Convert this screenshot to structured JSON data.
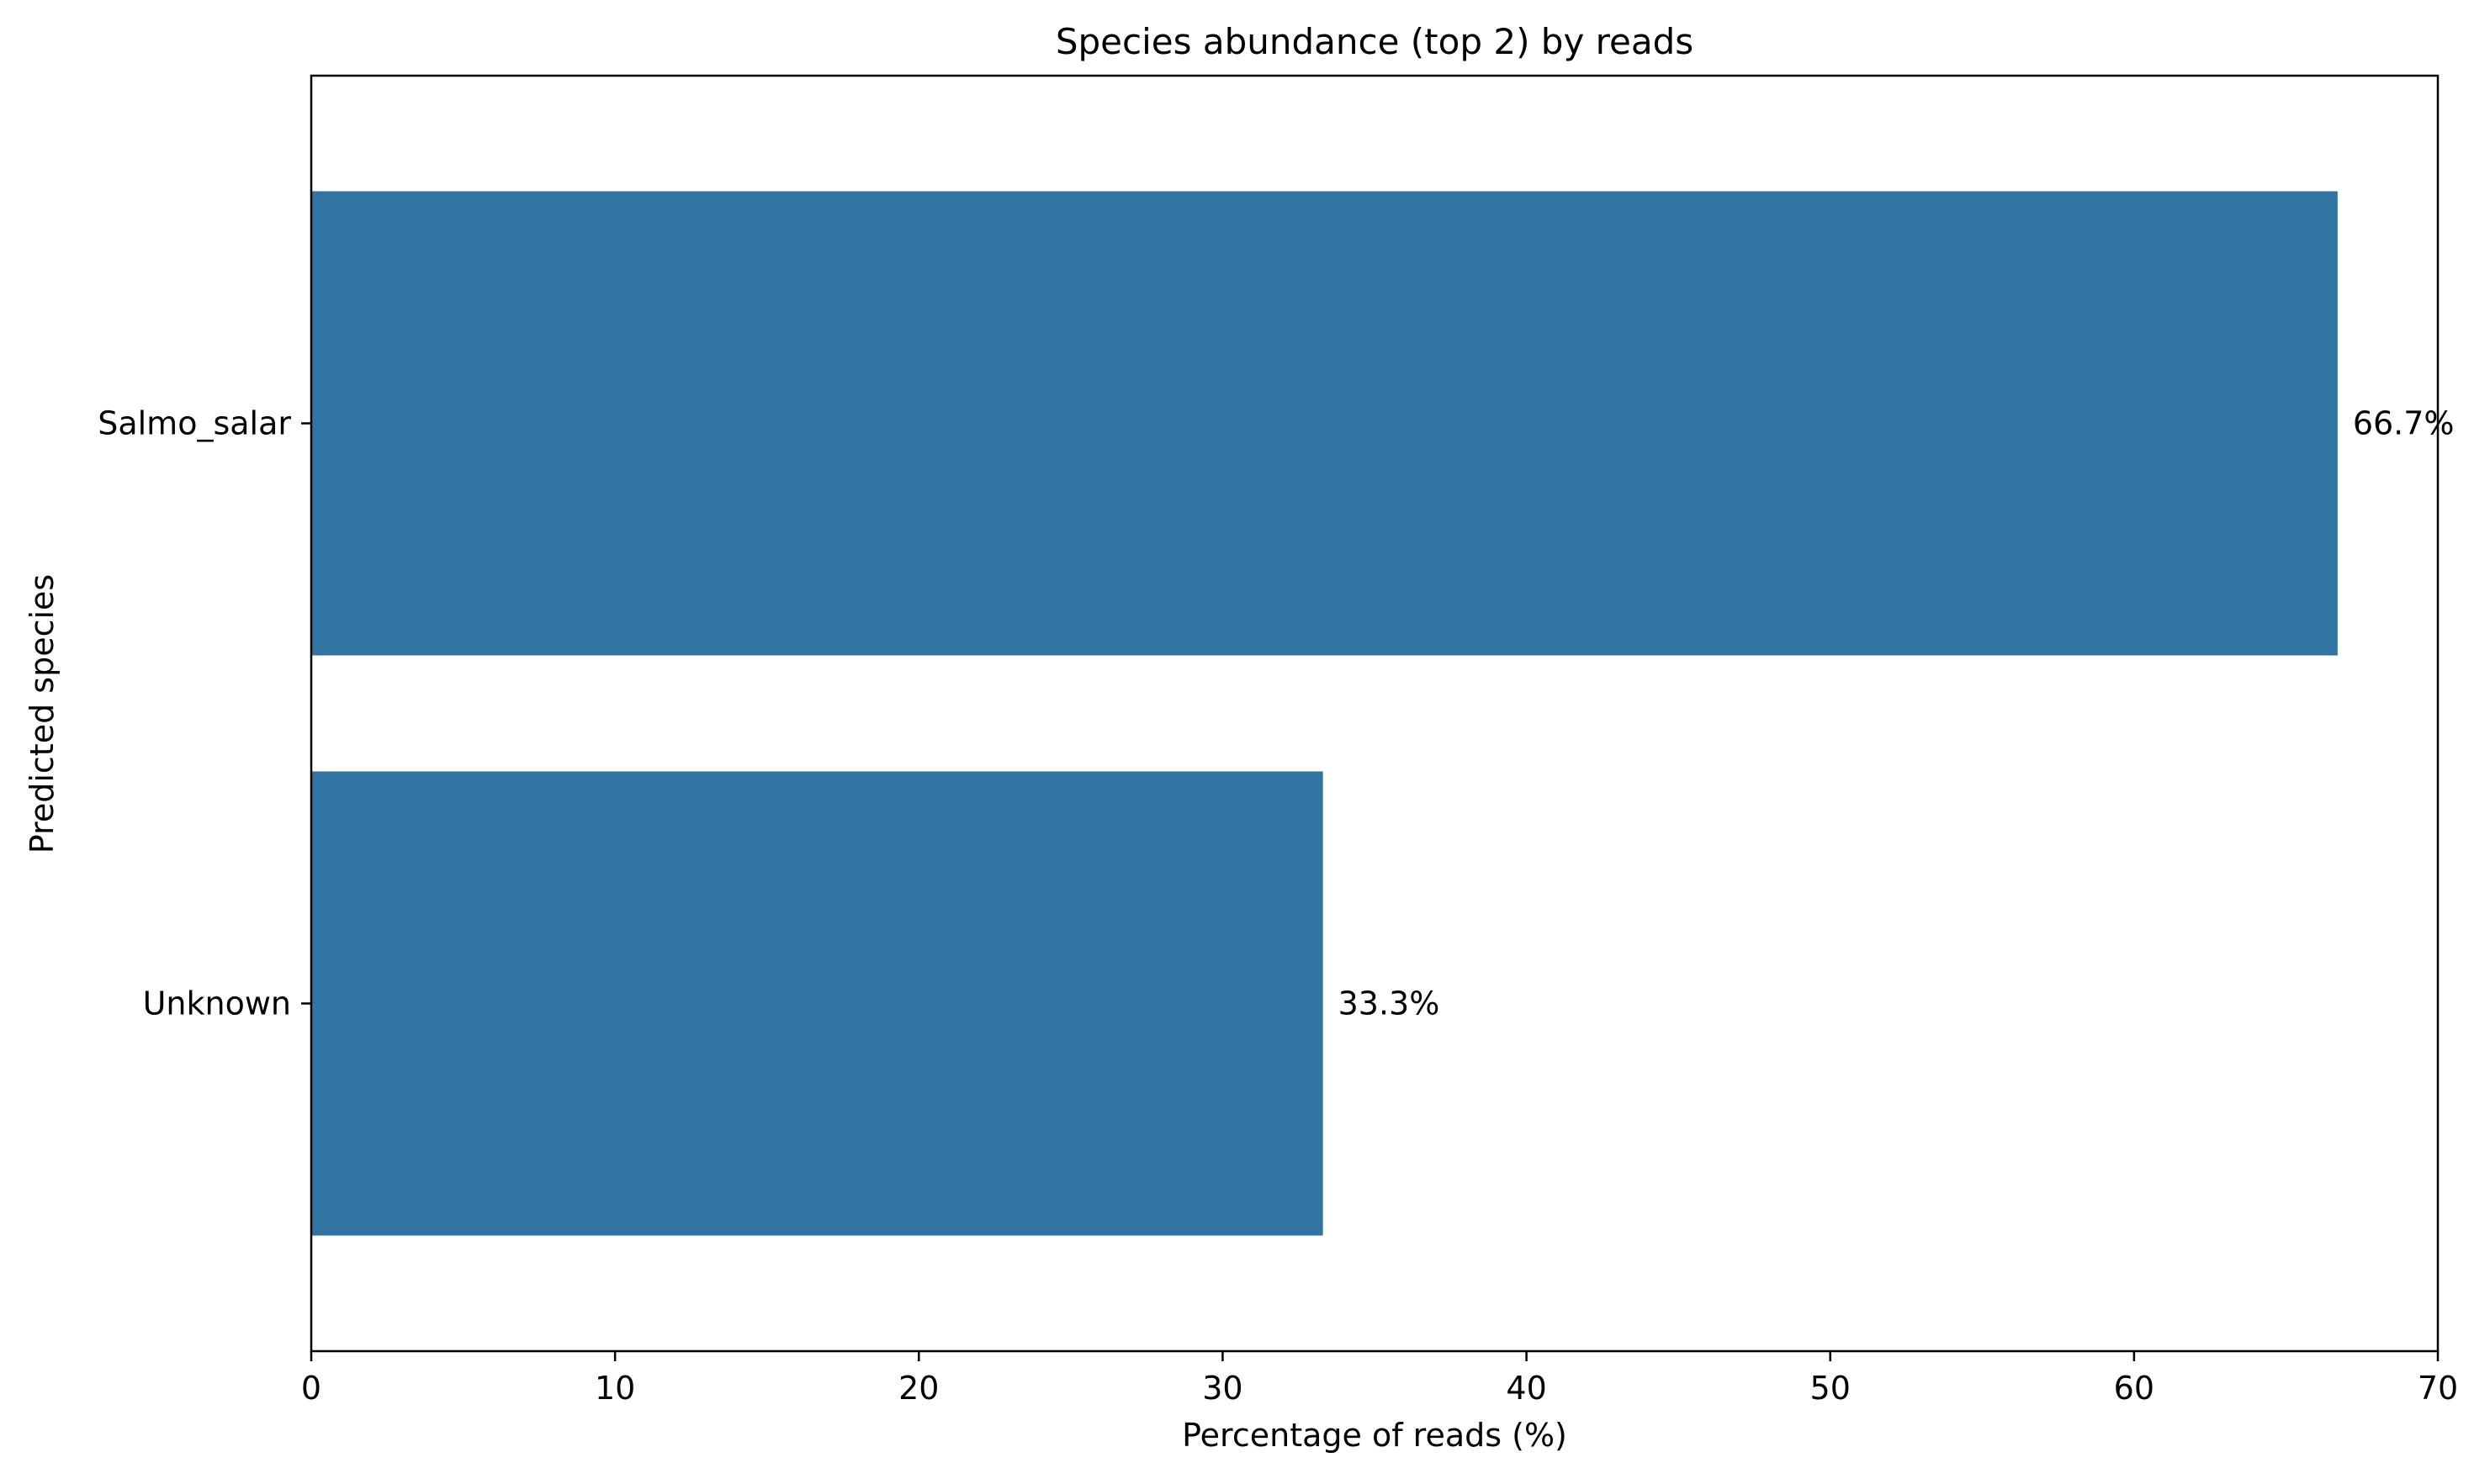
{
  "chart_data": {
    "type": "bar",
    "orientation": "horizontal",
    "title": "Species abundance (top 2) by reads",
    "xlabel": "Percentage of reads (%)",
    "ylabel": "Predicted species",
    "categories": [
      "Salmo_salar",
      "Unknown"
    ],
    "values": [
      66.7,
      33.3
    ],
    "data_labels": [
      "66.7%",
      "33.3%"
    ],
    "xlim": [
      0,
      70
    ],
    "xticks": [
      0,
      10,
      20,
      30,
      40,
      50,
      60,
      70
    ],
    "grid": false,
    "bar_color": "#3274a1"
  }
}
